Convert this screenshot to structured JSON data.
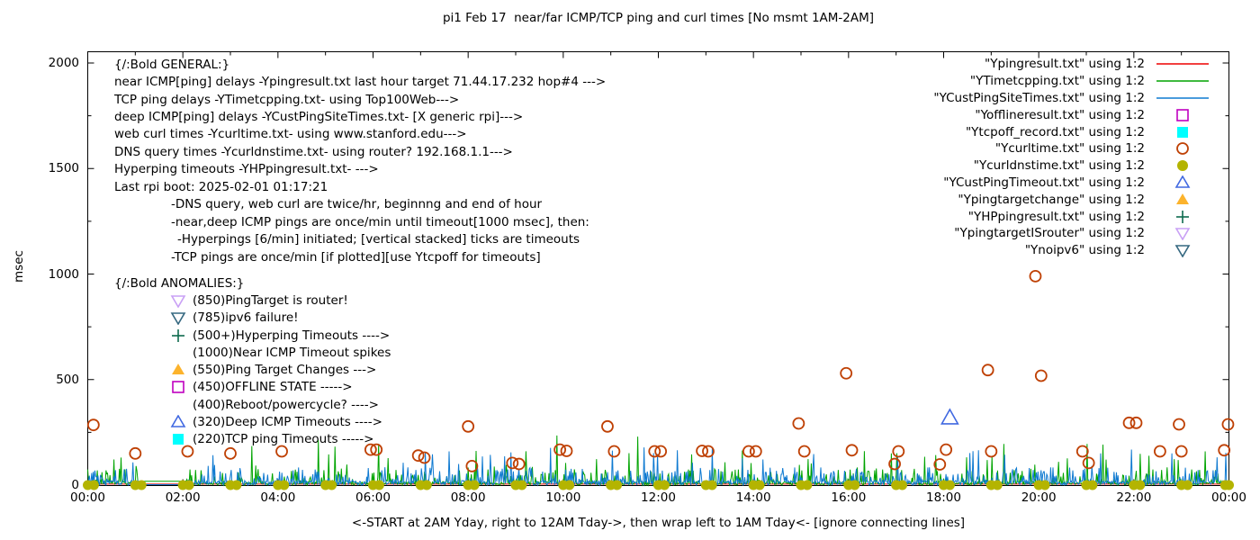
{
  "title": "pi1 Feb 17  near/far ICMP/TCP ping and curl times [No msmt 1AM-2AM]",
  "y_axis": {
    "label": "msec",
    "ticks": [
      0,
      500,
      1000,
      1500,
      2000
    ],
    "minor_step": 250,
    "max": 2000
  },
  "x_axis": {
    "label": "<-START at 2AM Yday, right to 12AM Tday->, then wrap left to 1AM Tday<- [ignore connecting lines]",
    "tick_labels": [
      "00:00",
      "02:00",
      "04:00",
      "06:00",
      "08:00",
      "10:00",
      "12:00",
      "14:00",
      "16:00",
      "18:00",
      "20:00",
      "22:00",
      "00:00"
    ],
    "hours_span": 24,
    "minor_tick_every_hours": 1
  },
  "annotations": {
    "general": {
      "lines": [
        {
          "text": "{/:Bold GENERAL:}",
          "indent": 0
        },
        {
          "text": "near ICMP[ping] delays -Ypingresult.txt last hour target 71.44.17.232 hop#4 --->",
          "indent": 0
        },
        {
          "text": "TCP ping delays -YTimetcpping.txt- using Top100Web--->",
          "indent": 0
        },
        {
          "text": "deep ICMP[ping] delays -YCustPingSiteTimes.txt- [X generic rpi]--->",
          "indent": 0
        },
        {
          "text": "web curl times -Ycurltime.txt- using www.stanford.edu--->",
          "indent": 0
        },
        {
          "text": "DNS query times -Ycurldnstime.txt- using router? 192.168.1.1--->",
          "indent": 0
        },
        {
          "text": "Hyperping timeouts -YHPpingresult.txt- --->",
          "indent": 0
        },
        {
          "text": "Last rpi boot: 2025-02-01 01:17:21",
          "indent": 0
        },
        {
          "text": "-DNS query, web curl are twice/hr, beginnng and end of hour",
          "indent": 63
        },
        {
          "text": "-near,deep ICMP pings are once/min until timeout[1000 msec], then:",
          "indent": 63
        },
        {
          "text": "-Hyperpings [6/min] initiated; [vertical stacked] ticks are timeouts",
          "indent": 70
        },
        {
          "text": "-TCP pings are once/min [if plotted][use Ytcpoff for timeouts]",
          "indent": 63
        }
      ]
    },
    "anomalies": {
      "lines": [
        {
          "text": "{/:Bold ANOMALIES:}",
          "indent": 0,
          "icon": null,
          "header": true
        },
        {
          "text": "(850)PingTarget is router!",
          "icon": "triangle-down-open",
          "color": "#c9a0f5"
        },
        {
          "text": "(785)ipv6 failure!",
          "icon": "triangle-down-open",
          "color": "#356880"
        },
        {
          "text": "(500+)Hyperping Timeouts ---->",
          "icon": "plus",
          "color": "#0e6b4e"
        },
        {
          "text": "(1000)Near ICMP Timeout spikes",
          "icon": null
        },
        {
          "text": "(550)Ping Target Changes --->",
          "icon": "triangle-up-filled",
          "color": "#fcb32c"
        },
        {
          "text": "(450)OFFLINE STATE ----->",
          "icon": "square-open",
          "color": "#c000c0"
        },
        {
          "text": "(400)Reboot/powercycle? ---->",
          "icon": null
        },
        {
          "text": "(320)Deep ICMP Timeouts ---->",
          "icon": "triangle-up-open",
          "color": "#4169e1"
        },
        {
          "text": "(220)TCP ping Timeouts ----->",
          "icon": "square-filled",
          "color": "#00ffff"
        }
      ]
    }
  },
  "legend": {
    "entries": [
      {
        "label": "\"Ypingresult.txt\" using 1:2",
        "marker": "line",
        "color": "#ee0000"
      },
      {
        "label": "\"YTimetcpping.txt\" using 1:2",
        "marker": "line",
        "color": "#00a400"
      },
      {
        "label": "\"YCustPingSiteTimes.txt\" using 1:2",
        "marker": "line",
        "color": "#0f7ad1"
      },
      {
        "label": "\"Yofflineresult.txt\" using 1:2",
        "marker": "square-open",
        "color": "#c000c0"
      },
      {
        "label": "\"Ytcpoff_record.txt\" using 1:2",
        "marker": "square-filled",
        "color": "#00ffff"
      },
      {
        "label": "\"Ycurltime.txt\" using 1:2",
        "marker": "circle-open",
        "color": "#bf4105"
      },
      {
        "label": "\"Ycurldnstime.txt\" using 1:2",
        "marker": "circle-filled",
        "color": "#b4b400"
      },
      {
        "label": "\"YCustPingTimeout.txt\" using 1:2",
        "marker": "triangle-up-open",
        "color": "#4169e1"
      },
      {
        "label": "\"Ypingtargetchange\" using 1:2",
        "marker": "triangle-up-filled",
        "color": "#fcb32c"
      },
      {
        "label": "\"YHPpingresult.txt\" using 1:2",
        "marker": "plus",
        "color": "#0e6b4e"
      },
      {
        "label": "\"YpingtargetISrouter\" using 1:2",
        "marker": "triangle-down-open",
        "color": "#c9a0f5"
      },
      {
        "label": "\"Ynoipv6\" using 1:2",
        "marker": "triangle-down-open",
        "color": "#356880"
      }
    ]
  },
  "chart_data": {
    "type": "line",
    "x_unit": "hours (0-24, wrapped day)",
    "ylim": [
      0,
      2000
    ],
    "no_measurement_gap_hours": [
      1.08,
      2.08
    ],
    "series": [
      {
        "name": "Ypingresult.txt",
        "style": "line",
        "color": "#ee0000",
        "description": "near ICMP ping delays, flat baseline",
        "baseline_msec": 5
      },
      {
        "name": "YTimetcpping.txt",
        "style": "noisy-line",
        "color": "#00a400",
        "gap_value": 18,
        "noise": {
          "seed": 7,
          "base_max": 16,
          "mid_prob": 0.2,
          "mid_max": 75,
          "spike_prob": 0.03,
          "spike_max": 165
        },
        "tall_spikes": [
          [
            3.45,
            185
          ],
          [
            4.85,
            212
          ],
          [
            5.2,
            182
          ],
          [
            6.12,
            195
          ],
          [
            9.87,
            235
          ],
          [
            11.57,
            230
          ],
          [
            16.9,
            150
          ],
          [
            19.27,
            195
          ],
          [
            21.02,
            195
          ],
          [
            21.35,
            192
          ],
          [
            23.5,
            160
          ]
        ]
      },
      {
        "name": "YCustPingSiteTimes.txt",
        "style": "noisy-line",
        "color": "#0f7ad1",
        "gap_value": 2,
        "noise": {
          "seed": 13,
          "base_max": 22,
          "mid_prob": 0.25,
          "mid_max": 85,
          "spike_prob": 0.025,
          "spike_max": 185
        },
        "tall_spikes": [
          [
            7.6,
            160
          ],
          [
            8.9,
            155
          ],
          [
            12.4,
            165
          ],
          [
            18.73,
            165
          ],
          [
            22.8,
            150
          ]
        ]
      },
      {
        "name": "Yofflineresult.txt",
        "style": "scatter",
        "marker": "square-open",
        "color": "#c000c0",
        "points": []
      },
      {
        "name": "Ytcpoff_record.txt",
        "style": "scatter",
        "marker": "square-filled",
        "color": "#00ffff",
        "points": []
      },
      {
        "name": "Ycurltime.txt",
        "style": "scatter",
        "marker": "circle-open",
        "color": "#bf4105",
        "points": [
          [
            0.12,
            285
          ],
          [
            1.0,
            150
          ],
          [
            2.1,
            160
          ],
          [
            3.0,
            150
          ],
          [
            4.08,
            160
          ],
          [
            5.95,
            168
          ],
          [
            6.07,
            168
          ],
          [
            6.95,
            140
          ],
          [
            7.08,
            130
          ],
          [
            8.0,
            278
          ],
          [
            8.08,
            90
          ],
          [
            8.93,
            105
          ],
          [
            9.07,
            100
          ],
          [
            9.93,
            168
          ],
          [
            10.07,
            162
          ],
          [
            10.93,
            278
          ],
          [
            11.07,
            160
          ],
          [
            11.92,
            160
          ],
          [
            12.05,
            160
          ],
          [
            12.92,
            162
          ],
          [
            13.05,
            160
          ],
          [
            13.9,
            160
          ],
          [
            14.05,
            160
          ],
          [
            14.95,
            292
          ],
          [
            15.07,
            160
          ],
          [
            15.95,
            530
          ],
          [
            16.07,
            165
          ],
          [
            16.97,
            100
          ],
          [
            17.05,
            160
          ],
          [
            17.92,
            98
          ],
          [
            18.05,
            168
          ],
          [
            18.93,
            545
          ],
          [
            19.0,
            160
          ],
          [
            19.93,
            990
          ],
          [
            20.05,
            518
          ],
          [
            20.92,
            160
          ],
          [
            21.05,
            105
          ],
          [
            21.9,
            295
          ],
          [
            22.05,
            295
          ],
          [
            22.55,
            160
          ],
          [
            22.95,
            288
          ],
          [
            23.0,
            160
          ],
          [
            23.9,
            165
          ],
          [
            23.98,
            288
          ]
        ]
      },
      {
        "name": "Ycurldnstime.txt",
        "style": "scatter",
        "marker": "circle-filled",
        "color": "#b4b400",
        "points": [
          [
            0,
            0
          ],
          [
            0.13,
            0
          ],
          [
            1,
            0
          ],
          [
            1.13,
            0
          ],
          [
            2,
            0
          ],
          [
            2.13,
            0
          ],
          [
            3,
            0
          ],
          [
            3.13,
            0
          ],
          [
            4,
            0
          ],
          [
            4.13,
            0
          ],
          [
            5,
            0
          ],
          [
            5.13,
            0
          ],
          [
            6,
            0
          ],
          [
            6.13,
            0
          ],
          [
            7,
            0
          ],
          [
            7.13,
            0
          ],
          [
            8,
            0
          ],
          [
            8.13,
            0
          ],
          [
            9,
            0
          ],
          [
            9.13,
            0
          ],
          [
            10,
            0
          ],
          [
            10.13,
            0
          ],
          [
            11,
            0
          ],
          [
            11.13,
            0
          ],
          [
            12,
            0
          ],
          [
            12.13,
            0
          ],
          [
            13,
            0
          ],
          [
            13.13,
            0
          ],
          [
            14,
            0
          ],
          [
            14.13,
            0
          ],
          [
            15,
            0
          ],
          [
            15.13,
            0
          ],
          [
            16,
            0
          ],
          [
            16.13,
            0
          ],
          [
            17,
            0
          ],
          [
            17.13,
            0
          ],
          [
            18,
            0
          ],
          [
            18.13,
            0
          ],
          [
            19,
            0
          ],
          [
            19.13,
            0
          ],
          [
            20,
            0
          ],
          [
            20.13,
            0
          ],
          [
            21,
            0
          ],
          [
            21.13,
            0
          ],
          [
            22,
            0
          ],
          [
            22.13,
            0
          ],
          [
            23,
            0
          ],
          [
            23.13,
            0
          ],
          [
            23.92,
            0
          ],
          [
            24,
            0
          ]
        ]
      },
      {
        "name": "YCustPingTimeout.txt",
        "style": "scatter",
        "marker": "triangle-up-open",
        "color": "#4169e1",
        "points": [
          [
            18.13,
            320
          ]
        ]
      },
      {
        "name": "Ypingtargetchange",
        "style": "scatter",
        "marker": "triangle-up-filled",
        "color": "#fcb32c",
        "points": []
      },
      {
        "name": "YHPpingresult.txt",
        "style": "scatter",
        "marker": "plus",
        "color": "#0e6b4e",
        "points": []
      },
      {
        "name": "YpingtargetISrouter",
        "style": "scatter",
        "marker": "triangle-down-open",
        "color": "#c9a0f5",
        "points": []
      },
      {
        "name": "Ynoipv6",
        "style": "scatter",
        "marker": "triangle-down-open",
        "color": "#356880",
        "points": []
      }
    ]
  }
}
